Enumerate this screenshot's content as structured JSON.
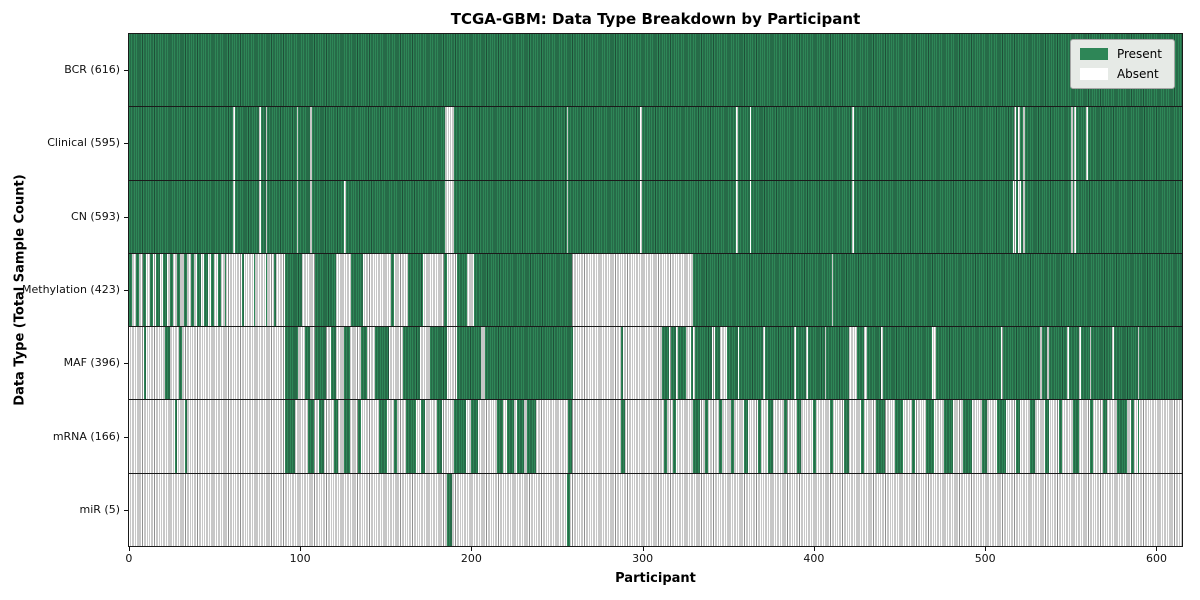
{
  "chart_data": {
    "type": "heatmap",
    "title": "TCGA-GBM: Data Type Breakdown by Participant",
    "xlabel": "Participant",
    "ylabel": "Data Type (Total Sample Count)",
    "n_participants": 616,
    "x_ticks": [
      0,
      100,
      200,
      300,
      400,
      500,
      600
    ],
    "xlim": [
      0,
      616
    ],
    "grid": false,
    "legend_position": "upper right",
    "legend": [
      {
        "label": "Present",
        "state": "present"
      },
      {
        "label": "Absent",
        "state": "absent"
      }
    ],
    "colors": {
      "present": "#2e8657",
      "present_edge": "#1e5038",
      "absent": "#ffffff",
      "absent_edge": "#8f8f8f",
      "row_divider": "#1a1a1a",
      "legend_bg": "#e6eae6"
    },
    "rows": [
      {
        "label": "BCR (616)",
        "data_type": "BCR",
        "total_sample_count": 616,
        "present_runs": [
          [
            0,
            616
          ]
        ]
      },
      {
        "label": "Clinical (595)",
        "data_type": "Clinical",
        "total_sample_count": 595,
        "present_runs": [
          [
            0,
            61
          ],
          [
            62,
            76
          ],
          [
            77,
            80
          ],
          [
            81,
            98
          ],
          [
            99,
            106
          ],
          [
            107,
            185
          ],
          [
            190,
            256
          ],
          [
            257,
            299
          ],
          [
            300,
            355
          ],
          [
            356,
            363
          ],
          [
            364,
            423
          ],
          [
            424,
            518
          ],
          [
            519,
            520
          ],
          [
            521,
            523
          ],
          [
            524,
            551
          ],
          [
            552,
            553
          ],
          [
            554,
            560
          ],
          [
            561,
            616
          ]
        ]
      },
      {
        "label": "CN (593)",
        "data_type": "CN",
        "total_sample_count": 593,
        "present_runs": [
          [
            0,
            61
          ],
          [
            62,
            76
          ],
          [
            77,
            80
          ],
          [
            81,
            98
          ],
          [
            99,
            106
          ],
          [
            107,
            126
          ],
          [
            127,
            185
          ],
          [
            190,
            256
          ],
          [
            257,
            299
          ],
          [
            300,
            355
          ],
          [
            356,
            363
          ],
          [
            364,
            423
          ],
          [
            424,
            517
          ],
          [
            519,
            520
          ],
          [
            522,
            523
          ],
          [
            524,
            551
          ],
          [
            552,
            553
          ],
          [
            554,
            616
          ]
        ]
      },
      {
        "label": "Methylation (423)",
        "data_type": "Methylation",
        "total_sample_count": 423,
        "present_runs": [
          [
            0,
            2
          ],
          [
            4,
            6
          ],
          [
            8,
            10
          ],
          [
            12,
            14
          ],
          [
            16,
            18
          ],
          [
            20,
            22
          ],
          [
            24,
            26
          ],
          [
            28,
            30
          ],
          [
            32,
            34
          ],
          [
            36,
            38
          ],
          [
            40,
            42
          ],
          [
            44,
            46
          ],
          [
            48,
            50
          ],
          [
            52,
            54
          ],
          [
            56,
            57
          ],
          [
            66,
            67
          ],
          [
            73,
            74
          ],
          [
            80,
            81
          ],
          [
            85,
            86
          ],
          [
            91,
            101
          ],
          [
            109,
            121
          ],
          [
            130,
            137
          ],
          [
            153,
            155
          ],
          [
            163,
            172
          ],
          [
            184,
            186
          ],
          [
            192,
            198
          ],
          [
            202,
            259
          ],
          [
            330,
            411
          ],
          [
            412,
            616
          ]
        ]
      },
      {
        "label": "MAF (396)",
        "data_type": "MAF",
        "total_sample_count": 396,
        "present_runs": [
          [
            9,
            10
          ],
          [
            21,
            24
          ],
          [
            29,
            31
          ],
          [
            91,
            99
          ],
          [
            103,
            106
          ],
          [
            109,
            115
          ],
          [
            118,
            121
          ],
          [
            126,
            129
          ],
          [
            136,
            139
          ],
          [
            144,
            152
          ],
          [
            160,
            170
          ],
          [
            176,
            186
          ],
          [
            192,
            206
          ],
          [
            208,
            260
          ],
          [
            288,
            289
          ],
          [
            312,
            316
          ],
          [
            317,
            320
          ],
          [
            321,
            326
          ],
          [
            329,
            330
          ],
          [
            331,
            341
          ],
          [
            343,
            346
          ],
          [
            350,
            356
          ],
          [
            357,
            371
          ],
          [
            372,
            389
          ],
          [
            390,
            396
          ],
          [
            397,
            407
          ],
          [
            408,
            421
          ],
          [
            426,
            430
          ],
          [
            432,
            440
          ],
          [
            441,
            470
          ],
          [
            472,
            510
          ],
          [
            511,
            533
          ],
          [
            534,
            537
          ],
          [
            538,
            549
          ],
          [
            550,
            556
          ],
          [
            557,
            562
          ],
          [
            563,
            575
          ],
          [
            576,
            590
          ],
          [
            591,
            616
          ]
        ]
      },
      {
        "label": "mRNA (166)",
        "data_type": "mRNA",
        "total_sample_count": 166,
        "present_runs": [
          [
            27,
            28
          ],
          [
            33,
            34
          ],
          [
            91,
            97
          ],
          [
            105,
            108
          ],
          [
            111,
            114
          ],
          [
            120,
            122
          ],
          [
            126,
            129
          ],
          [
            134,
            136
          ],
          [
            146,
            151
          ],
          [
            155,
            157
          ],
          [
            162,
            168
          ],
          [
            171,
            173
          ],
          [
            180,
            183
          ],
          [
            190,
            197
          ],
          [
            200,
            204
          ],
          [
            215,
            219
          ],
          [
            221,
            225
          ],
          [
            227,
            231
          ],
          [
            233,
            238
          ],
          [
            257,
            259
          ],
          [
            288,
            290
          ],
          [
            313,
            315
          ],
          [
            318,
            320
          ],
          [
            330,
            334
          ],
          [
            337,
            339
          ],
          [
            345,
            347
          ],
          [
            352,
            354
          ],
          [
            360,
            362
          ],
          [
            368,
            370
          ],
          [
            374,
            377
          ],
          [
            383,
            385
          ],
          [
            391,
            393
          ],
          [
            400,
            402
          ],
          [
            410,
            412
          ],
          [
            418,
            421
          ],
          [
            428,
            430
          ],
          [
            437,
            442
          ],
          [
            448,
            453
          ],
          [
            458,
            460
          ],
          [
            466,
            471
          ],
          [
            477,
            482
          ],
          [
            488,
            493
          ],
          [
            499,
            502
          ],
          [
            508,
            513
          ],
          [
            519,
            521
          ],
          [
            527,
            530
          ],
          [
            536,
            538
          ],
          [
            544,
            546
          ],
          [
            552,
            556
          ],
          [
            562,
            564
          ],
          [
            570,
            572
          ],
          [
            578,
            584
          ],
          [
            586,
            588
          ],
          [
            590,
            591
          ]
        ]
      },
      {
        "label": "miR (5)",
        "data_type": "miR",
        "total_sample_count": 5,
        "present_runs": [
          [
            186,
            189
          ],
          [
            256,
            258
          ]
        ]
      }
    ]
  }
}
